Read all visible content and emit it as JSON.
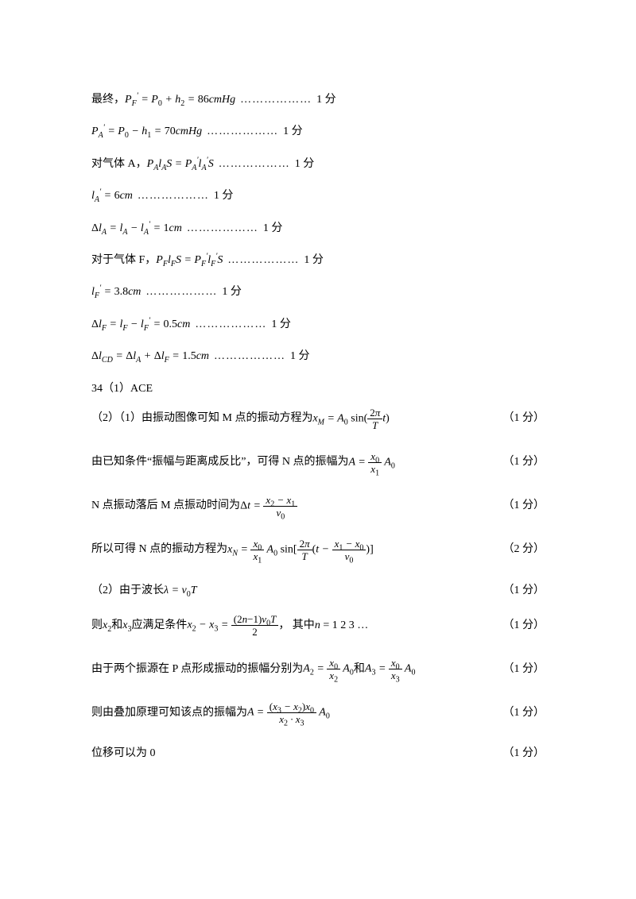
{
  "doc": {
    "font_size_pt": 10.5,
    "math_font": "Times New Roman",
    "cn_font": "SimSun",
    "text_color": "#000000",
    "bg_color": "#ffffff"
  },
  "lines": {
    "l1_pre": "最终，",
    "l1_eq": "P′_F = P₀ + h₂ = 86cmHg",
    "l1_pts": "1 分",
    "l2_eq": "P′_A = P₀ − h₁ = 70cmHg",
    "l2_pts": "1 分",
    "l3_pre": "对气体 A，",
    "l3_eq": "P_A l_A S = P′_A l′_A S",
    "l3_pts": "1 分",
    "l4_eq": "l′_A = 6cm",
    "l4_pts": "1 分",
    "l5_eq": "Δl_A = l_A − l′_A = 1cm",
    "l5_pts": "1 分",
    "l6_pre": "对于气体 F，",
    "l6_eq": "P_F l_F S = P′_F l′_F S",
    "l6_pts": "1 分",
    "l7_eq": "l′_F = 3.8cm",
    "l7_pts": "1 分",
    "l8_eq": "Δl_F = l_F − l′_F = 0.5cm",
    "l8_pts": "1 分",
    "l9_eq": "Δl_CD = Δl_A + Δl_F = 1.5cm",
    "l9_pts": "1 分",
    "l10": "34（1）ACE",
    "l11_pre": "（2）（1）由振动图像可知 M 点的振动方程为",
    "l11_pts": "（1 分）",
    "l12_pre": "由已知条件“振幅与距离成反比”，可得 N 点的振幅为",
    "l12_pts": "（1 分）",
    "l13_pre": "N 点振动落后 M 点振动时间为",
    "l13_pts": "（1 分）",
    "l14_pre": "所以可得 N 点的振动方程为",
    "l14_pts": "（2 分）",
    "l15_pre": "（2）由于波长",
    "l15_eq": "λ = v₀T",
    "l15_pts": "（1 分）",
    "l16_pre": "则",
    "l16_mid1": "和",
    "l16_mid2": "应满足条件",
    "l16_post": "，   其中",
    "l16_n": "n = 1  2  3 …",
    "l16_pts": "（1 分）",
    "l17_pre": "由于两个振源在 P 点形成振动的振幅分别为",
    "l17_and": "和",
    "l17_pts": "（1 分）",
    "l18_pre": "则由叠加原理可知该点的振幅为",
    "l18_pts": "（1 分）",
    "l19": "位移可以为 0",
    "l19_pts": "（1 分）"
  },
  "dots": "………………"
}
